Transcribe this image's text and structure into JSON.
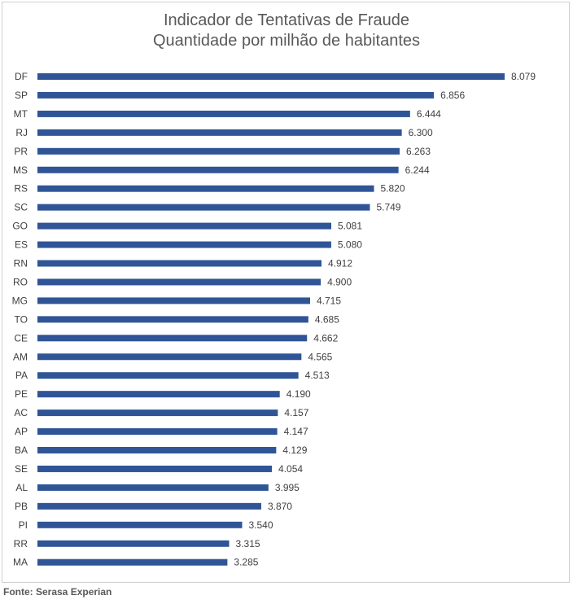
{
  "chart_data": {
    "type": "bar",
    "orientation": "horizontal",
    "title": "Indicador de Tentativas de Fraude",
    "subtitle": "Quantidade por milhão de habitantes",
    "categories": [
      "DF",
      "SP",
      "MT",
      "RJ",
      "PR",
      "MS",
      "RS",
      "SC",
      "GO",
      "ES",
      "RN",
      "RO",
      "MG",
      "TO",
      "CE",
      "AM",
      "PA",
      "PE",
      "AC",
      "AP",
      "BA",
      "SE",
      "AL",
      "PB",
      "PI",
      "RR",
      "MA"
    ],
    "values": [
      8079,
      6856,
      6444,
      6300,
      6263,
      6244,
      5820,
      5749,
      5081,
      5080,
      4912,
      4900,
      4715,
      4685,
      4662,
      4565,
      4513,
      4190,
      4157,
      4147,
      4129,
      4054,
      3995,
      3870,
      3540,
      3315,
      3285
    ],
    "value_labels": [
      "8.079",
      "6.856",
      "6.444",
      "6.300",
      "6.263",
      "6.244",
      "5.820",
      "5.749",
      "5.081",
      "5.080",
      "4.912",
      "4.900",
      "4.715",
      "4.685",
      "4.662",
      "4.565",
      "4.513",
      "4.190",
      "4.157",
      "4.147",
      "4.129",
      "4.054",
      "3.995",
      "3.870",
      "3.540",
      "3.315",
      "3.285"
    ],
    "xlim": [
      0,
      8079
    ],
    "grid": false,
    "legend": "none",
    "bar_color": "#2f5597"
  },
  "source": "Fonte: Serasa Experian"
}
